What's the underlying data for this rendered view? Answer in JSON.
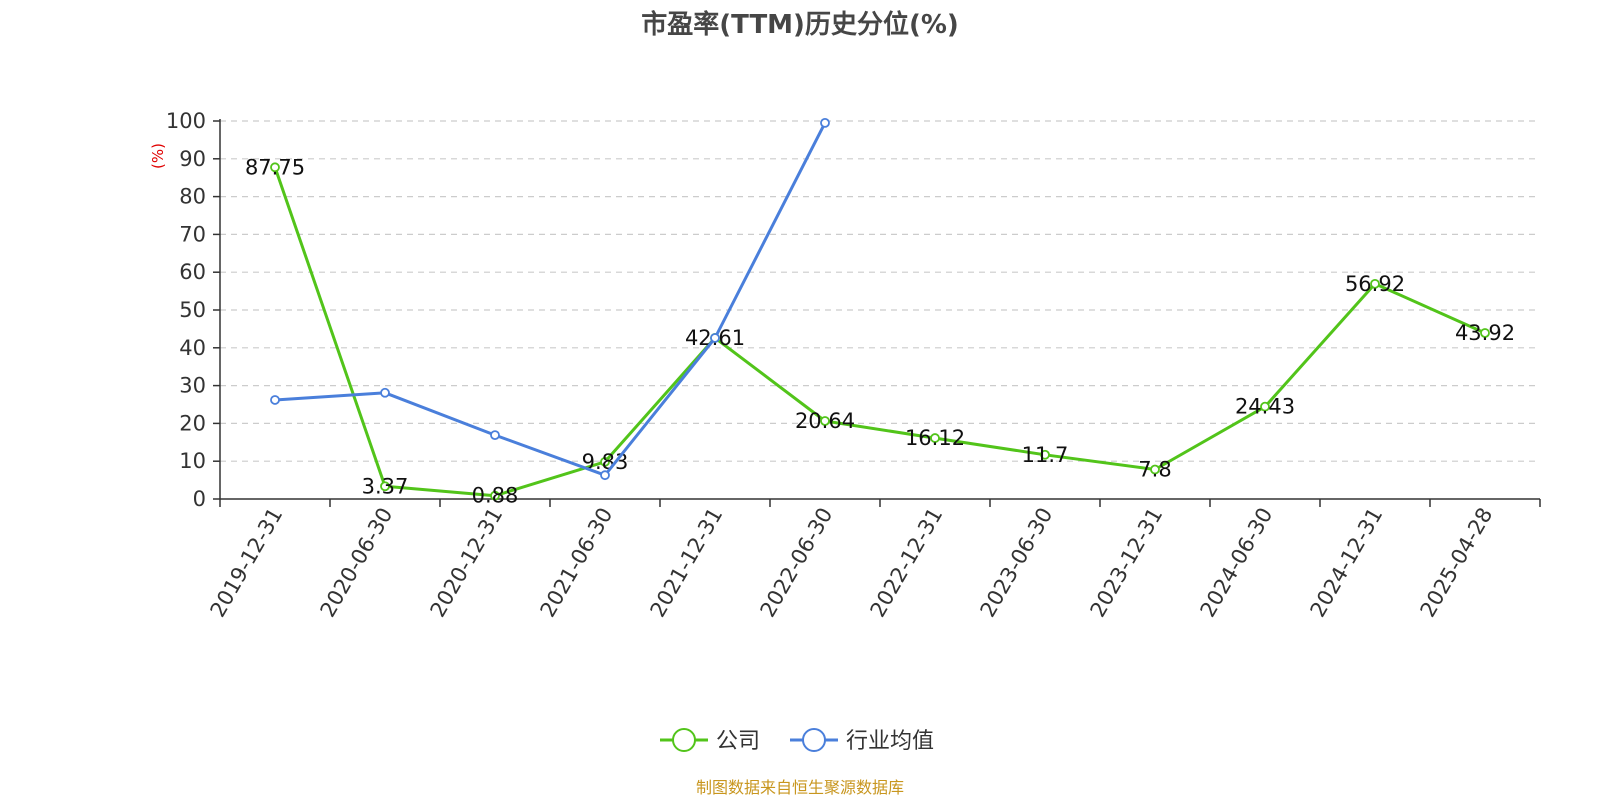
{
  "chart_data": {
    "type": "line",
    "title": "市盈率(TTM)历史分位(%)",
    "y_unit": "(%)",
    "ylim": [
      0,
      100
    ],
    "y_ticks": [
      0,
      10,
      20,
      30,
      40,
      50,
      60,
      70,
      80,
      90,
      100
    ],
    "grid": true,
    "categories": [
      "2019-12-31",
      "2020-06-30",
      "2020-12-31",
      "2021-06-30",
      "2021-12-31",
      "2022-06-30",
      "2022-12-31",
      "2023-06-30",
      "2023-12-31",
      "2024-06-30",
      "2024-12-31",
      "2025-04-28"
    ],
    "series": [
      {
        "name": "公司",
        "color": "#52c41a",
        "show_labels": true,
        "values": [
          87.75,
          3.37,
          0.88,
          9.83,
          42.61,
          20.64,
          16.12,
          11.7,
          7.8,
          24.43,
          56.92,
          43.92
        ]
      },
      {
        "name": "行业均值",
        "color": "#4a7fdb",
        "show_labels": false,
        "values": [
          26.2,
          28.1,
          16.9,
          6.3,
          42.6,
          99.5,
          null,
          null,
          null,
          null,
          null,
          null
        ]
      }
    ],
    "legend_position": "bottom-center",
    "source": "制图数据来自恒生聚源数据库",
    "source_color": "#c8961e"
  }
}
